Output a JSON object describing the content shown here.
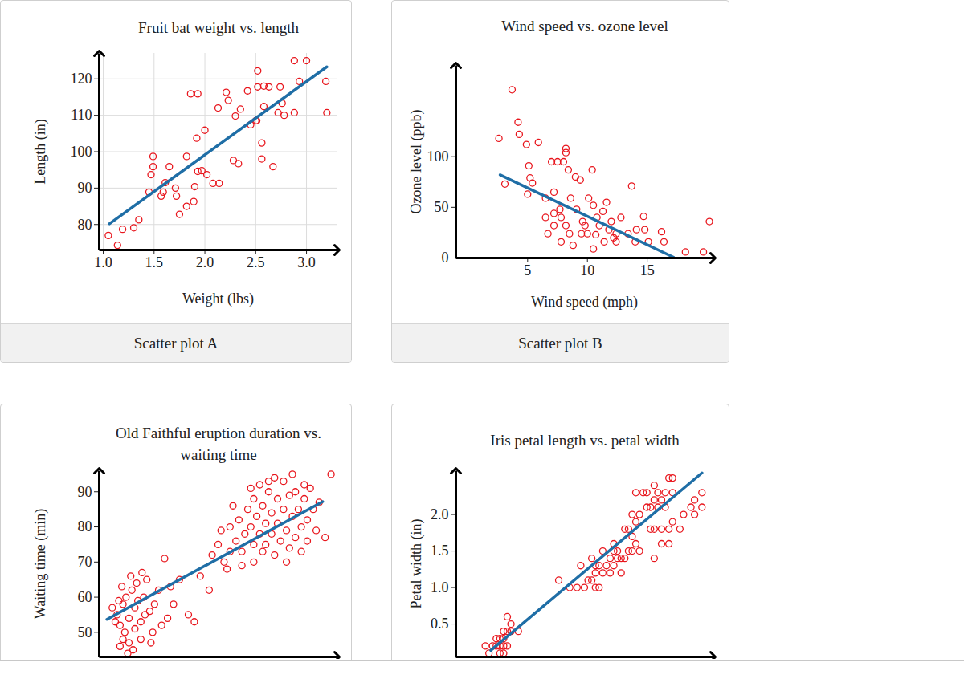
{
  "chart_data": [
    {
      "type": "scatter",
      "title": "Fruit bat weight vs. length",
      "caption": "Scatter plot A",
      "x_label": "Weight (lbs)",
      "y_label": "Length (in)",
      "xlim": [
        0.96,
        3.3
      ],
      "ylim": [
        73,
        127
      ],
      "xticks": [
        {
          "value": 1,
          "label": "1.0"
        },
        1.5,
        {
          "value": 2,
          "label": "2.0"
        },
        2.5,
        {
          "value": 3,
          "label": "3.0"
        }
      ],
      "yticks": [
        80,
        90,
        100,
        110,
        120
      ],
      "grid": true,
      "series": [
        {
          "type": "scatter",
          "color": "#e8161d",
          "marker": "circle",
          "x": [
            1.05,
            1.14,
            1.19,
            1.3,
            1.35,
            1.47,
            1.49,
            1.49,
            1.45,
            1.57,
            1.59,
            1.61,
            1.65,
            1.71,
            1.72,
            1.75,
            1.82,
            1.82,
            1.86,
            1.93,
            1.9,
            1.93,
            1.89,
            1.97,
            2.02,
            1.92,
            2.0,
            2.08,
            2.14,
            2.13,
            2.21,
            2.23,
            2.28,
            2.33,
            2.3,
            2.35,
            2.42,
            2.52,
            2.52,
            2.58,
            2.63,
            2.45,
            2.51,
            2.56,
            2.56,
            2.67,
            2.74,
            2.76,
            2.72,
            2.88,
            2.78,
            2.88,
            3.0,
            2.93,
            3.2,
            3.19,
            2.58,
            2.5
          ],
          "values": [
            77,
            74.3,
            78.7,
            79.1,
            81.3,
            93.7,
            95.9,
            98.7,
            88.9,
            87.8,
            88.9,
            91.5,
            95.9,
            90,
            87.8,
            82.8,
            85,
            98.7,
            115.9,
            115.9,
            90.4,
            94.6,
            86.3,
            94.8,
            93.7,
            103.7,
            105.9,
            91.3,
            91.3,
            112,
            116.3,
            114.1,
            97.6,
            96.7,
            109.8,
            111.7,
            116.7,
            122.2,
            117.8,
            118,
            117.8,
            107.4,
            108.5,
            102.4,
            98,
            95.9,
            117.8,
            113.3,
            110.7,
            110.7,
            110,
            125,
            125,
            119.3,
            110.7,
            119.3,
            112.4,
            108.5
          ]
        },
        {
          "type": "line",
          "color": "#1f6ea6",
          "x": [
            1.06,
            3.2
          ],
          "values": [
            80.2,
            123.3
          ]
        }
      ]
    },
    {
      "type": "scatter",
      "title": "Wind speed vs. ozone level",
      "caption": "Scatter plot B",
      "x_label": "Wind speed (mph)",
      "y_label": "Ozone level (ppb)",
      "xlim": [
        -1,
        20.5
      ],
      "ylim": [
        0,
        190
      ],
      "xticks": [
        5,
        10,
        15
      ],
      "yticks": [
        0,
        50,
        100
      ],
      "grid": false,
      "series": [
        {
          "type": "scatter",
          "color": "#e8161d",
          "marker": "circle",
          "x": [
            3.7,
            2.6,
            4.2,
            4.3,
            4.9,
            3.1,
            5.1,
            5.9,
            7.0,
            7.5,
            8.0,
            8.2,
            8.2,
            8.4,
            9.0,
            9.4,
            10.4,
            5.2,
            5.4,
            5.0,
            6.5,
            7.2,
            7.7,
            7.8,
            8.2,
            7.2,
            6.7,
            8.5,
            8.8,
            9.1,
            9.6,
            10.1,
            10.0,
            10.5,
            10.7,
            11.0,
            11.3,
            11.6,
            12.0,
            12.4,
            12.8,
            13.7,
            13.4,
            14.0,
            14.7,
            14.8,
            15.1,
            16.2,
            16.4,
            18.2,
            19.7,
            20.2,
            9.5,
            12.2,
            11.4,
            7.8,
            10.8,
            9.8,
            11.8,
            7.2,
            8.6,
            6.5,
            12.4,
            14.1,
            10.5
          ],
          "values": [
            166,
            118,
            134,
            122,
            112,
            73,
            91,
            114,
            95,
            95,
            95,
            108,
            104,
            87,
            80,
            77,
            87,
            79,
            74,
            63,
            59,
            65,
            48,
            40,
            32,
            32,
            24,
            24,
            12.5,
            48,
            36,
            59,
            24,
            9,
            23,
            32,
            46,
            55,
            36,
            24,
            40,
            71,
            24,
            16,
            41,
            28,
            16,
            26,
            16,
            6,
            6,
            36,
            24,
            20,
            16,
            16,
            40,
            32,
            28,
            44,
            59,
            40,
            16,
            28,
            52
          ]
        },
        {
          "type": "line",
          "color": "#1f6ea6",
          "x": [
            2.7,
            17.2
          ],
          "values": [
            82,
            0.8
          ]
        }
      ]
    },
    {
      "type": "scatter",
      "title": "Old Faithful eruption duration vs. waiting time",
      "y_label": "Waiting time (min)",
      "xlim": [
        1.4,
        5.4
      ],
      "ylim": [
        43,
        96
      ],
      "yticks": [
        50,
        60,
        70,
        80,
        90
      ],
      "grid": false,
      "tick_labels": "y",
      "series": [
        {
          "type": "scatter",
          "color": "#e8161d",
          "marker": "circle",
          "x": [
            1.7,
            1.75,
            1.8,
            1.85,
            1.8,
            1.9,
            1.95,
            2.0,
            1.75,
            1.83,
            1.9,
            2.0,
            2.05,
            2.1,
            2.15,
            2.1,
            2.2,
            2.25,
            2.3,
            2.4,
            1.67,
            1.73,
            1.88,
            1.97,
            2.03,
            2.17,
            2.33,
            2.5,
            2.55,
            2.6,
            2.75,
            2.9,
            3.0,
            1.78,
            1.93,
            2.12,
            1.62,
            2.27,
            2.45,
            2.65,
            3.1,
            3.3,
            3.4,
            3.5,
            3.6,
            3.7,
            3.75,
            3.8,
            3.85,
            3.9,
            3.95,
            4.0,
            4.0,
            4.05,
            4.1,
            4.1,
            4.15,
            4.2,
            4.2,
            4.25,
            4.3,
            4.3,
            4.35,
            4.4,
            4.4,
            4.45,
            4.5,
            4.5,
            4.55,
            4.6,
            4.6,
            4.65,
            4.7,
            4.7,
            4.75,
            4.8,
            4.8,
            4.85,
            4.9,
            4.9,
            4.95,
            5.0,
            5.05,
            5.1,
            5.2,
            5.3,
            3.55,
            3.65,
            3.45,
            3.25,
            3.6,
            4.0,
            4.35,
            4.15,
            4.55,
            4.25,
            3.95,
            3.8,
            4.65,
            4.85
          ],
          "values": [
            55,
            52,
            58,
            60,
            48,
            54,
            62,
            57,
            46,
            50,
            47,
            51,
            59,
            53,
            60,
            48,
            65,
            56,
            50,
            62,
            53,
            59,
            44,
            45,
            64,
            55,
            58,
            71,
            54,
            63,
            65,
            55,
            53,
            63,
            66,
            67,
            57,
            47,
            52,
            58,
            66,
            72,
            75,
            70,
            80,
            76,
            82,
            73,
            78,
            85,
            80,
            75,
            88,
            83,
            78,
            92,
            86,
            81,
            75,
            90,
            84,
            78,
            72,
            88,
            81,
            76,
            93,
            85,
            79,
            74,
            89,
            83,
            77,
            90,
            85,
            80,
            73,
            88,
            82,
            76,
            91,
            85,
            79,
            87,
            77,
            95,
            68,
            86,
            79,
            62,
            73,
            70,
            94,
            73,
            70,
            93,
            91,
            69,
            95,
            92
          ]
        },
        {
          "type": "line",
          "color": "#1f6ea6",
          "x": [
            1.53,
            5.16
          ],
          "values": [
            53.7,
            87.2
          ]
        }
      ]
    },
    {
      "type": "scatter",
      "title": "Iris petal length vs. petal width",
      "y_label": "Petal width (in)",
      "xlim": [
        0.2,
        7.2
      ],
      "ylim": [
        0.05,
        2.6
      ],
      "yticks": [
        0.5,
        {
          "value": 1,
          "label": "1.0"
        },
        1.5,
        {
          "value": 2,
          "label": "2.0"
        }
      ],
      "grid": false,
      "tick_labels": "y",
      "series": [
        {
          "type": "scatter",
          "color": "#e8161d",
          "marker": "circle",
          "x": [
            1.4,
            1.3,
            1.5,
            1.4,
            1.6,
            1.5,
            1.7,
            1.2,
            1.1,
            1.0,
            1.9,
            1.6,
            1.5,
            1.3,
            1.7,
            1.4,
            1.6,
            1.5,
            3.0,
            3.3,
            3.5,
            3.6,
            3.8,
            3.9,
            3.9,
            4.0,
            4.0,
            4.1,
            4.1,
            4.2,
            4.2,
            4.3,
            4.4,
            4.4,
            4.5,
            4.5,
            4.6,
            4.6,
            4.7,
            4.7,
            4.8,
            4.9,
            5.0,
            5.1,
            4.0,
            3.7,
            4.5,
            4.8,
            4.9,
            5.0,
            5.1,
            5.1,
            5.2,
            5.3,
            5.4,
            5.5,
            5.5,
            5.6,
            5.6,
            5.6,
            5.7,
            5.7,
            5.8,
            5.8,
            5.9,
            5.9,
            6.0,
            6.0,
            6.1,
            6.1,
            6.3,
            6.4,
            6.6,
            6.7,
            6.7,
            6.9,
            5.6,
            5.4,
            5.2,
            5.0,
            6.1,
            5.8,
            6.0,
            6.9
          ],
          "values": [
            0.2,
            0.2,
            0.2,
            0.3,
            0.2,
            0.4,
            0.4,
            0.2,
            0.1,
            0.2,
            0.4,
            0.6,
            0.1,
            0.3,
            0.5,
            0.1,
            0.4,
            0.3,
            1.1,
            1.0,
            1.0,
            1.3,
            1.1,
            1.4,
            1.1,
            1.0,
            1.3,
            1.0,
            1.3,
            1.2,
            1.5,
            1.3,
            1.4,
            1.2,
            1.5,
            1.3,
            1.4,
            1.5,
            1.4,
            1.2,
            1.8,
            1.5,
            1.7,
            1.6,
            1.2,
            1.0,
            1.6,
            1.4,
            1.8,
            1.5,
            1.9,
            2.3,
            2.0,
            2.3,
            2.1,
            1.8,
            2.1,
            1.4,
            2.2,
            2.4,
            2.3,
            2.1,
            1.8,
            2.2,
            2.3,
            2.1,
            1.8,
            2.5,
            1.9,
            2.3,
            1.8,
            2.0,
            2.1,
            2.0,
            2.2,
            2.3,
            1.8,
            2.3,
            1.5,
            2.0,
            2.5,
            1.6,
            1.6,
            2.1
          ]
        },
        {
          "type": "line",
          "color": "#1f6ea6",
          "x": [
            1.15,
            6.9
          ],
          "values": [
            0.14,
            2.57
          ]
        }
      ]
    }
  ]
}
